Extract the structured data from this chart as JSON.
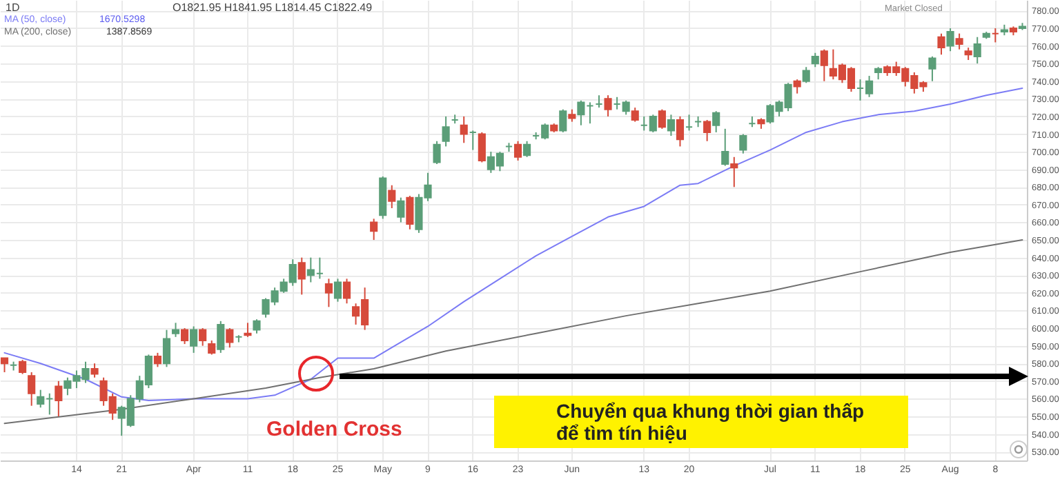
{
  "chart_data": {
    "type": "candlestick",
    "categories": [
      null,
      null,
      null,
      null,
      null,
      null,
      null,
      null,
      "14",
      null,
      null,
      null,
      null,
      "21",
      null,
      null,
      null,
      null,
      null,
      null,
      null,
      "Apr",
      null,
      null,
      null,
      null,
      null,
      "11",
      null,
      null,
      null,
      null,
      "18",
      null,
      null,
      null,
      null,
      "25",
      null,
      null,
      null,
      null,
      "May",
      null,
      null,
      null,
      null,
      "9",
      null,
      null,
      null,
      null,
      "16",
      null,
      null,
      null,
      null,
      "23",
      null,
      null,
      null,
      null,
      null,
      "Jun",
      null,
      null,
      null,
      null,
      null,
      null,
      null,
      "13",
      null,
      null,
      null,
      null,
      "20",
      null,
      null,
      null,
      null,
      null,
      null,
      null,
      null,
      "Jul",
      null,
      null,
      null,
      null,
      "11",
      null,
      null,
      null,
      null,
      "18",
      null,
      null,
      null,
      null,
      "25",
      null,
      null,
      null,
      null,
      "Aug",
      null,
      null,
      null,
      null,
      "8",
      null,
      null,
      null
    ],
    "ohlc": [
      [
        583,
        583,
        575,
        580
      ],
      [
        579,
        581,
        576,
        579
      ],
      [
        581,
        582,
        574,
        575
      ],
      [
        573,
        575,
        556,
        563
      ],
      [
        557,
        565,
        555,
        561
      ],
      [
        560,
        563,
        551,
        560
      ],
      [
        567,
        570,
        550,
        559
      ],
      [
        566,
        572,
        562,
        570
      ],
      [
        570,
        576,
        566,
        573
      ],
      [
        571,
        581,
        569,
        577
      ],
      [
        577,
        580,
        572,
        574
      ],
      [
        570,
        572,
        556,
        559
      ],
      [
        561,
        563,
        548,
        552
      ],
      [
        549,
        556,
        539,
        555
      ],
      [
        545,
        562,
        544,
        560
      ],
      [
        560,
        573,
        558,
        570
      ],
      [
        568,
        585,
        566,
        584
      ],
      [
        584,
        586,
        578,
        580
      ],
      [
        580,
        599,
        578,
        594
      ],
      [
        597,
        603,
        595,
        599
      ],
      [
        599,
        600,
        591,
        593
      ],
      [
        590,
        601,
        586,
        599
      ],
      [
        599,
        600,
        590,
        593
      ],
      [
        591,
        593,
        585,
        586
      ],
      [
        588,
        604,
        586,
        602
      ],
      [
        599,
        600,
        589,
        592
      ],
      [
        595,
        596,
        592,
        595
      ],
      [
        597,
        603,
        595,
        596
      ],
      [
        599,
        605,
        597,
        604
      ],
      [
        608,
        617,
        606,
        616
      ],
      [
        615,
        623,
        613,
        621
      ],
      [
        621,
        628,
        620,
        626
      ],
      [
        626,
        639,
        624,
        636
      ],
      [
        637,
        640,
        619,
        628
      ],
      [
        630,
        640,
        626,
        633
      ],
      [
        631,
        640,
        628,
        631
      ],
      [
        625,
        628,
        612,
        620
      ],
      [
        617,
        628,
        615,
        626
      ],
      [
        626,
        628,
        614,
        617
      ],
      [
        612,
        614,
        602,
        607
      ],
      [
        616,
        623,
        599,
        602
      ],
      [
        660,
        662,
        650,
        655
      ],
      [
        664,
        686,
        662,
        685
      ],
      [
        678,
        681,
        668,
        672
      ],
      [
        663,
        674,
        660,
        672
      ],
      [
        674,
        675,
        656,
        659
      ],
      [
        656,
        676,
        654,
        674
      ],
      [
        674,
        688,
        672,
        681
      ],
      [
        694,
        706,
        693,
        704
      ],
      [
        706,
        720,
        703,
        714
      ],
      [
        718,
        721,
        716,
        718
      ],
      [
        715,
        720,
        705,
        710
      ],
      [
        711,
        712,
        701,
        711
      ],
      [
        710,
        711,
        694,
        695
      ],
      [
        690,
        700,
        688,
        697
      ],
      [
        692,
        700,
        689,
        699
      ],
      [
        703,
        705,
        700,
        703
      ],
      [
        704,
        706,
        695,
        697
      ],
      [
        698,
        706,
        697,
        704
      ],
      [
        709,
        711,
        707,
        709
      ],
      [
        708,
        716,
        707,
        715
      ],
      [
        715,
        716,
        711,
        712
      ],
      [
        712,
        724,
        711,
        723
      ],
      [
        721,
        724,
        717,
        719
      ],
      [
        721,
        729,
        715,
        728
      ],
      [
        726,
        728,
        716,
        726
      ],
      [
        727,
        732,
        725,
        727
      ],
      [
        730,
        732,
        720,
        724
      ],
      [
        727,
        731,
        724,
        727
      ],
      [
        723,
        729,
        721,
        728
      ],
      [
        723,
        725,
        717,
        718
      ],
      [
        715,
        720,
        712,
        715
      ],
      [
        712,
        721,
        711,
        720
      ],
      [
        723,
        724,
        713,
        714
      ],
      [
        712,
        721,
        709,
        718
      ],
      [
        718,
        720,
        703,
        707
      ],
      [
        714,
        721,
        712,
        714
      ],
      [
        717,
        720,
        714,
        717
      ],
      [
        717,
        718,
        706,
        711
      ],
      [
        715,
        723,
        711,
        722
      ],
      [
        693,
        713,
        692,
        700
      ],
      [
        693,
        697,
        680,
        691
      ],
      [
        701,
        710,
        699,
        709
      ],
      [
        716,
        720,
        714,
        716
      ],
      [
        718,
        719,
        713,
        716
      ],
      [
        717,
        727,
        716,
        726
      ],
      [
        723,
        729,
        720,
        728
      ],
      [
        725,
        739,
        723,
        738
      ],
      [
        740,
        741,
        733,
        737
      ],
      [
        740,
        748,
        739,
        746
      ],
      [
        750,
        756,
        748,
        754
      ],
      [
        757,
        758,
        740,
        749
      ],
      [
        747,
        758,
        741,
        743
      ],
      [
        749,
        750,
        739,
        741
      ],
      [
        747,
        748,
        734,
        736
      ],
      [
        736,
        741,
        729,
        736
      ],
      [
        733,
        743,
        731,
        740
      ],
      [
        745,
        748,
        741,
        747
      ],
      [
        748,
        749,
        743,
        745
      ],
      [
        748,
        751,
        743,
        745
      ],
      [
        747,
        748,
        737,
        740
      ],
      [
        743,
        745,
        733,
        736
      ],
      [
        739,
        740,
        734,
        737
      ],
      [
        747,
        754,
        740,
        753
      ],
      [
        765,
        767,
        755,
        759
      ],
      [
        760,
        770,
        757,
        768
      ],
      [
        764,
        767,
        758,
        761
      ],
      [
        757,
        759,
        752,
        755
      ],
      [
        754,
        765,
        750,
        761
      ],
      [
        765,
        768,
        764,
        767
      ],
      [
        767,
        770,
        762,
        767
      ],
      [
        768,
        772,
        766,
        769
      ],
      [
        770,
        771,
        766,
        768
      ],
      [
        770,
        773,
        769,
        771
      ]
    ],
    "colors": [
      "#d64a3b",
      "#5b9e78",
      "#d64a3b",
      "#d64a3b",
      "#5b9e78",
      "#5b9e78",
      "#d64a3b",
      "#5b9e78",
      "#5b9e78",
      "#5b9e78",
      "#d64a3b",
      "#d64a3b",
      "#d64a3b",
      "#5b9e78",
      "#5b9e78",
      "#5b9e78",
      "#5b9e78",
      "#d64a3b",
      "#5b9e78",
      "#5b9e78",
      "#d64a3b",
      "#5b9e78",
      "#d64a3b",
      "#d64a3b",
      "#5b9e78",
      "#d64a3b",
      "#5b9e78",
      "#d64a3b",
      "#5b9e78",
      "#5b9e78",
      "#5b9e78",
      "#5b9e78",
      "#5b9e78",
      "#d64a3b",
      "#5b9e78",
      "#5b9e78",
      "#d64a3b",
      "#5b9e78",
      "#d64a3b",
      "#d64a3b",
      "#d64a3b",
      "#d64a3b",
      "#5b9e78",
      "#d64a3b",
      "#5b9e78",
      "#d64a3b",
      "#5b9e78",
      "#5b9e78",
      "#5b9e78",
      "#5b9e78",
      "#5b9e78",
      "#d64a3b",
      "#5b9e78",
      "#d64a3b",
      "#5b9e78",
      "#5b9e78",
      "#5b9e78",
      "#d64a3b",
      "#5b9e78",
      "#5b9e78",
      "#5b9e78",
      "#d64a3b",
      "#5b9e78",
      "#d64a3b",
      "#5b9e78",
      "#5b9e78",
      "#5b9e78",
      "#d64a3b",
      "#5b9e78",
      "#5b9e78",
      "#d64a3b",
      "#5b9e78",
      "#5b9e78",
      "#d64a3b",
      "#5b9e78",
      "#d64a3b",
      "#5b9e78",
      "#5b9e78",
      "#d64a3b",
      "#5b9e78",
      "#5b9e78",
      "#d64a3b",
      "#5b9e78",
      "#5b9e78",
      "#d64a3b",
      "#5b9e78",
      "#5b9e78",
      "#5b9e78",
      "#d64a3b",
      "#5b9e78",
      "#5b9e78",
      "#d64a3b",
      "#d64a3b",
      "#d64a3b",
      "#d64a3b",
      "#5b9e78",
      "#5b9e78",
      "#5b9e78",
      "#d64a3b",
      "#d64a3b",
      "#d64a3b",
      "#d64a3b",
      "#d64a3b",
      "#5b9e78",
      "#d64a3b",
      "#5b9e78",
      "#d64a3b",
      "#d64a3b",
      "#5b9e78",
      "#5b9e78",
      "#d64a3b",
      "#5b9e78",
      "#d64a3b",
      "#5b9e78"
    ],
    "series": [
      {
        "name": "MA (50, close)",
        "type": "line",
        "color": "#7b7bf5",
        "values": [
          586,
          null,
          null,
          null,
          580,
          null,
          null,
          null,
          null,
          571,
          null,
          null,
          null,
          561,
          null,
          null,
          559,
          null,
          null,
          null,
          null,
          560,
          null,
          null,
          null,
          null,
          null,
          560,
          null,
          null,
          562,
          null,
          null,
          null,
          571,
          null,
          null,
          583,
          null,
          null,
          null,
          583,
          null,
          589,
          null,
          null,
          null,
          601,
          null,
          null,
          null,
          615,
          null,
          null,
          null,
          628,
          null,
          null,
          null,
          641,
          null,
          null,
          null,
          652,
          null,
          null,
          null,
          663,
          null,
          null,
          null,
          669,
          null,
          null,
          null,
          681,
          null,
          682,
          null,
          null,
          null,
          692,
          null,
          null,
          null,
          701,
          null,
          null,
          null,
          711,
          null,
          null,
          null,
          717,
          null,
          null,
          null,
          721,
          null,
          null,
          null,
          723,
          null,
          null,
          null,
          727,
          null,
          null,
          null,
          732,
          null,
          null,
          null,
          736
        ]
      },
      {
        "name": "MA (200, close)",
        "type": "line",
        "color": "#707070",
        "values": [
          546,
          null,
          null,
          null,
          null,
          null,
          null,
          null,
          null,
          null,
          null,
          null,
          null,
          554,
          null,
          null,
          null,
          null,
          null,
          null,
          null,
          560,
          null,
          null,
          null,
          null,
          null,
          null,
          null,
          566,
          null,
          null,
          null,
          null,
          null,
          572,
          null,
          null,
          null,
          null,
          null,
          577,
          null,
          null,
          null,
          null,
          null,
          null,
          null,
          587,
          null,
          null,
          null,
          null,
          null,
          null,
          null,
          null,
          null,
          597,
          null,
          null,
          null,
          null,
          null,
          null,
          null,
          null,
          null,
          607,
          null,
          null,
          null,
          null,
          null,
          null,
          null,
          614,
          null,
          null,
          null,
          null,
          null,
          null,
          null,
          621,
          null,
          null,
          null,
          null,
          null,
          null,
          null,
          null,
          null,
          632,
          null,
          null,
          null,
          null,
          null,
          null,
          null,
          null,
          null,
          643,
          null,
          null,
          null,
          null,
          null,
          null,
          null,
          650
        ]
      }
    ],
    "ylim": [
      525,
      786
    ],
    "yticks": [
      {
        "value": 530,
        "label": "530.00"
      },
      {
        "value": 540,
        "label": "540.00"
      },
      {
        "value": 550,
        "label": "550.00"
      },
      {
        "value": 560,
        "label": "560.00"
      },
      {
        "value": 570,
        "label": "570.00"
      },
      {
        "value": 580,
        "label": "580.00"
      },
      {
        "value": 590,
        "label": "590.00"
      },
      {
        "value": 600,
        "label": "600.00"
      },
      {
        "value": 610,
        "label": "610.00"
      },
      {
        "value": 620,
        "label": "620.00"
      },
      {
        "value": 630,
        "label": "630.00"
      },
      {
        "value": 640,
        "label": "640.00"
      },
      {
        "value": 650,
        "label": "650.00"
      },
      {
        "value": 660,
        "label": "660.00"
      },
      {
        "value": 670,
        "label": "670.00"
      },
      {
        "value": 680,
        "label": "680.00"
      },
      {
        "value": 690,
        "label": "690.00"
      },
      {
        "value": 700,
        "label": "700.00"
      },
      {
        "value": 710,
        "label": "710.00"
      },
      {
        "value": 720,
        "label": "720.00"
      },
      {
        "value": 730,
        "label": "730.00"
      },
      {
        "value": 740,
        "label": "740.00"
      },
      {
        "value": 750,
        "label": "750.00"
      },
      {
        "value": 760,
        "label": "760.00"
      },
      {
        "value": 770,
        "label": "770.00"
      },
      {
        "value": 780,
        "label": "780.00"
      }
    ],
    "grid": true,
    "annotations": [
      "1D",
      "O1821.95 H1841.95 L1814.45 C1822.49",
      "1670.5298",
      "1387.8569",
      "Market Closed",
      "Golden Cross",
      "Chuyển qua khung thời gian thấp\nđể tìm tín hiệu"
    ]
  }
}
